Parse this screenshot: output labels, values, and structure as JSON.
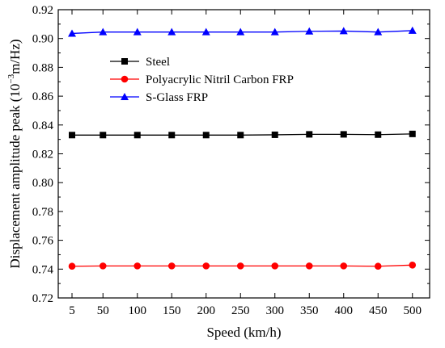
{
  "chart_data": {
    "type": "line",
    "xlabel": "Speed (km/h)",
    "ylabel_parts": [
      "Displacement amplitude peak (10",
      "−3",
      "m/Hz)"
    ],
    "x": [
      5,
      50,
      100,
      150,
      200,
      250,
      300,
      350,
      400,
      450,
      500
    ],
    "x_ticks": [
      5,
      50,
      100,
      150,
      200,
      250,
      300,
      350,
      400,
      450,
      500
    ],
    "xlim": [
      -15,
      525
    ],
    "ylim": [
      0.72,
      0.92
    ],
    "y_ticks": [
      "0.72",
      "0.74",
      "0.76",
      "0.78",
      "0.80",
      "0.82",
      "0.84",
      "0.86",
      "0.88",
      "0.90",
      "0.92"
    ],
    "legend_position": "upper-left",
    "grid": false,
    "series": [
      {
        "name": "Steel",
        "color": "#000000",
        "marker": "square",
        "values": [
          0.833,
          0.833,
          0.833,
          0.833,
          0.833,
          0.833,
          0.8332,
          0.8335,
          0.8335,
          0.8333,
          0.8338
        ]
      },
      {
        "name": "Polyacrylic Nitril Carbon FRP",
        "color": "#ff0000",
        "marker": "circle",
        "values": [
          0.742,
          0.7422,
          0.7422,
          0.7422,
          0.7422,
          0.7422,
          0.7422,
          0.7422,
          0.7422,
          0.742,
          0.7428
        ]
      },
      {
        "name": "S-Glass FRP",
        "color": "#0000ff",
        "marker": "triangle",
        "values": [
          0.9035,
          0.9045,
          0.9045,
          0.9045,
          0.9045,
          0.9045,
          0.9045,
          0.905,
          0.9052,
          0.9045,
          0.9055
        ]
      }
    ]
  }
}
